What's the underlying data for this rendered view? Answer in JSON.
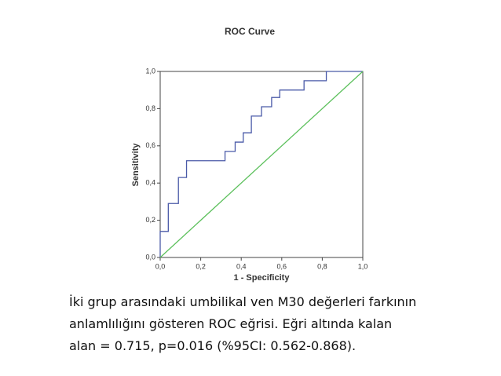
{
  "chart_data": {
    "type": "line",
    "title": "ROC Curve",
    "x_label": "1 - Specificity",
    "y_label": "Sensitivity",
    "xlim": [
      0,
      1
    ],
    "ylim": [
      0,
      1
    ],
    "xticks": [
      {
        "value": 0,
        "label": "0,0"
      },
      {
        "value": 0.2,
        "label": "0,2"
      },
      {
        "value": 0.4,
        "label": "0,4"
      },
      {
        "value": 0.6,
        "label": "0,6"
      },
      {
        "value": 0.8,
        "label": "0,8"
      },
      {
        "value": 1,
        "label": "1,0"
      }
    ],
    "yticks": [
      {
        "value": 0,
        "label": "0,0"
      },
      {
        "value": 0.2,
        "label": "0,2"
      },
      {
        "value": 0.4,
        "label": "0,4"
      },
      {
        "value": 0.6,
        "label": "0,6"
      },
      {
        "value": 0.8,
        "label": "0,8"
      },
      {
        "value": 1,
        "label": "1,0"
      }
    ],
    "series": [
      {
        "color": "#4a5aa8",
        "x": [
          0,
          0,
          0.04,
          0.04,
          0.09,
          0.09,
          0.13,
          0.13,
          0.32,
          0.32,
          0.37,
          0.37,
          0.41,
          0.41,
          0.45,
          0.45,
          0.5,
          0.5,
          0.55,
          0.55,
          0.59,
          0.59,
          0.71,
          0.71,
          0.82,
          0.82,
          1
        ],
        "y": [
          0,
          0.14,
          0.14,
          0.29,
          0.29,
          0.43,
          0.43,
          0.52,
          0.52,
          0.57,
          0.57,
          0.62,
          0.62,
          0.67,
          0.67,
          0.76,
          0.76,
          0.81,
          0.81,
          0.86,
          0.86,
          0.9,
          0.9,
          0.95,
          0.95,
          1,
          1
        ]
      },
      {
        "color": "#5cc05c",
        "x": [
          0,
          1
        ],
        "y": [
          0,
          1
        ]
      }
    ]
  },
  "caption": {
    "lines": [
      "İki grup arasındaki umbilikal ven M30 değerleri farkının",
      "anlamlılığını gösteren ROC eğrisi. Eğri altında kalan",
      "alan = 0.715, p=0.016 (%95CI: 0.562-0.868)."
    ]
  }
}
